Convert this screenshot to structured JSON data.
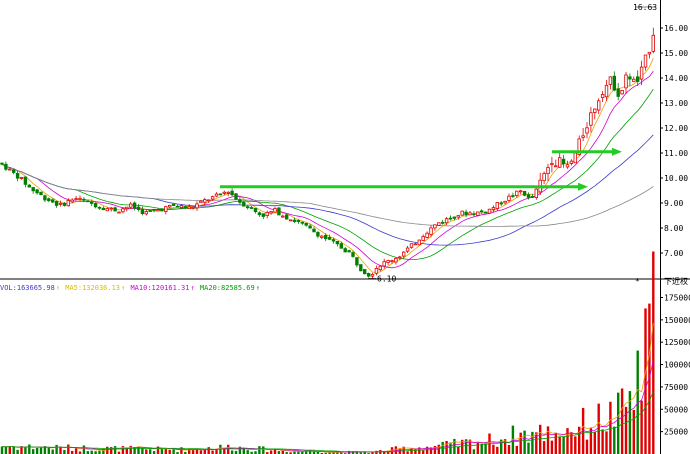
{
  "chart_data": {
    "type": "candlestick",
    "price_axis": {
      "ticks": [
        "16.00",
        "15.00",
        "14.00",
        "13.00",
        "12.00",
        "11.00",
        "10.00",
        "9.00",
        "8.00",
        "7.00"
      ],
      "range": [
        6.0,
        16.8
      ]
    },
    "volume_axis": {
      "ticks": [
        "175000",
        "150000",
        "125000",
        "100000",
        "75000",
        "50000",
        "25000"
      ],
      "range": [
        0,
        180000
      ]
    },
    "annotations": {
      "high_label": "16.63",
      "low_label": "6.10",
      "axis_corner_label": "下近权",
      "marker": "*"
    },
    "volume_legend": [
      {
        "label": "VOL:163665.98",
        "color": "#3b3bc8"
      },
      {
        "label": "MA5:132036.13",
        "color": "#d8c000"
      },
      {
        "label": "MA10:120161.31",
        "color": "#d000d0"
      },
      {
        "label": "MA20:82585.69",
        "color": "#00a000"
      }
    ],
    "trend_arrows": [
      {
        "start_price": 9.65,
        "end_price": 9.65,
        "color": "#22cc22"
      },
      {
        "start_price": 11.05,
        "end_price": 11.05,
        "color": "#22cc22"
      }
    ],
    "price_path": [
      [
        0,
        10.6
      ],
      [
        10,
        10.3
      ],
      [
        20,
        10.0
      ],
      [
        30,
        9.6
      ],
      [
        45,
        9.2
      ],
      [
        60,
        8.9
      ],
      [
        75,
        9.2
      ],
      [
        90,
        9.0
      ],
      [
        105,
        8.8
      ],
      [
        118,
        8.7
      ],
      [
        130,
        8.9
      ],
      [
        145,
        8.6
      ],
      [
        160,
        8.75
      ],
      [
        175,
        8.9
      ],
      [
        190,
        8.8
      ],
      [
        205,
        9.1
      ],
      [
        218,
        9.3
      ],
      [
        228,
        9.5
      ],
      [
        238,
        9.1
      ],
      [
        250,
        8.8
      ],
      [
        262,
        8.5
      ],
      [
        275,
        8.7
      ],
      [
        288,
        8.4
      ],
      [
        300,
        8.2
      ],
      [
        312,
        7.9
      ],
      [
        325,
        7.6
      ],
      [
        338,
        7.3
      ],
      [
        350,
        7.0
      ],
      [
        360,
        6.4
      ],
      [
        370,
        6.1
      ],
      [
        378,
        6.5
      ],
      [
        390,
        6.7
      ],
      [
        400,
        6.9
      ],
      [
        412,
        7.3
      ],
      [
        425,
        7.8
      ],
      [
        438,
        8.2
      ],
      [
        450,
        8.4
      ],
      [
        462,
        8.6
      ],
      [
        475,
        8.6
      ],
      [
        488,
        8.7
      ],
      [
        500,
        9.0
      ],
      [
        512,
        9.3
      ],
      [
        522,
        9.5
      ],
      [
        530,
        9.1
      ],
      [
        538,
        9.6
      ],
      [
        545,
        10.2
      ],
      [
        552,
        10.8
      ],
      [
        560,
        10.6
      ],
      [
        568,
        10.4
      ],
      [
        576,
        11.0
      ],
      [
        585,
        12.0
      ],
      [
        595,
        12.9
      ],
      [
        603,
        13.6
      ],
      [
        612,
        13.9
      ],
      [
        620,
        13.3
      ],
      [
        628,
        14.2
      ],
      [
        636,
        13.7
      ],
      [
        644,
        14.5
      ],
      [
        650,
        15.3
      ],
      [
        656,
        16.3
      ],
      [
        660,
        16.1
      ]
    ],
    "volume_profile": [
      [
        0,
        9000
      ],
      [
        60,
        7000
      ],
      [
        120,
        6000
      ],
      [
        180,
        5000
      ],
      [
        230,
        8000
      ],
      [
        280,
        4000
      ],
      [
        330,
        2500
      ],
      [
        370,
        2000
      ],
      [
        400,
        6000
      ],
      [
        440,
        9000
      ],
      [
        490,
        15000
      ],
      [
        520,
        22000
      ],
      [
        560,
        25000
      ],
      [
        590,
        35000
      ],
      [
        620,
        45000
      ],
      [
        640,
        80000
      ],
      [
        650,
        130000
      ],
      [
        656,
        170000
      ],
      [
        660,
        160000
      ]
    ]
  }
}
